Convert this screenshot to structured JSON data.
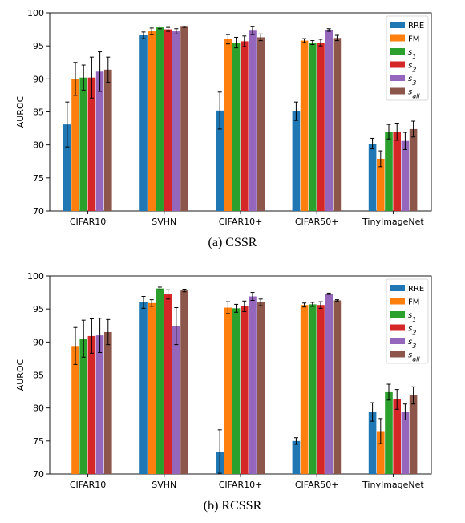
{
  "chart_data": [
    {
      "type": "bar",
      "caption": "(a)  CSSR",
      "ylabel": "AUROC",
      "ylim": [
        70,
        100
      ],
      "yticks": [
        70,
        75,
        80,
        85,
        90,
        95,
        100
      ],
      "categories": [
        "CIFAR10",
        "SVHN",
        "CIFAR10+",
        "CIFAR50+",
        "TinyImageNet"
      ],
      "legend_position": "top-right",
      "series": [
        {
          "name": "RRE",
          "color": "#1f77b4",
          "values": [
            83.1,
            96.6,
            85.2,
            85.1,
            80.2
          ],
          "errors": [
            3.4,
            0.5,
            2.8,
            1.4,
            0.8
          ]
        },
        {
          "name": "FM",
          "color": "#ff7f0e",
          "values": [
            90.0,
            97.2,
            96.0,
            95.8,
            77.9
          ],
          "errors": [
            2.5,
            0.5,
            0.7,
            0.3,
            1.2
          ]
        },
        {
          "name": "s1",
          "color": "#2ca02c",
          "values": [
            90.2,
            97.8,
            95.5,
            95.5,
            82.0
          ],
          "errors": [
            1.9,
            0.2,
            0.8,
            0.3,
            1.1
          ]
        },
        {
          "name": "s2",
          "color": "#d62728",
          "values": [
            90.2,
            97.5,
            95.7,
            95.5,
            82.0
          ],
          "errors": [
            3.1,
            0.3,
            0.8,
            0.5,
            1.3
          ]
        },
        {
          "name": "s3",
          "color": "#9467bd",
          "values": [
            91.1,
            97.2,
            97.3,
            97.4,
            80.6
          ],
          "errors": [
            3.0,
            0.4,
            0.6,
            0.2,
            1.3
          ]
        },
        {
          "name": "s_all",
          "color": "#8c564b",
          "values": [
            91.4,
            97.9,
            96.3,
            96.2,
            82.4
          ],
          "errors": [
            1.9,
            0.1,
            0.5,
            0.4,
            1.2
          ]
        }
      ]
    },
    {
      "type": "bar",
      "caption": "(b)  RCSSR",
      "ylabel": "AUROC",
      "ylim": [
        70,
        100
      ],
      "yticks": [
        70,
        75,
        80,
        85,
        90,
        95,
        100
      ],
      "categories": [
        "CIFAR10",
        "SVHN",
        "CIFAR10+",
        "CIFAR50+",
        "TinyImageNet"
      ],
      "legend_position": "top-right",
      "series": [
        {
          "name": "RRE",
          "color": "#1f77b4",
          "values": [
            null,
            96.0,
            73.4,
            75.0,
            79.4
          ],
          "errors": [
            0,
            0.9,
            3.3,
            0.5,
            1.4
          ]
        },
        {
          "name": "FM",
          "color": "#ff7f0e",
          "values": [
            89.4,
            95.9,
            95.2,
            95.6,
            76.5
          ],
          "errors": [
            2.8,
            0.5,
            0.9,
            0.3,
            1.9
          ]
        },
        {
          "name": "s1",
          "color": "#2ca02c",
          "values": [
            90.5,
            98.1,
            95.1,
            95.7,
            82.4
          ],
          "errors": [
            2.8,
            0.2,
            0.6,
            0.3,
            1.2
          ]
        },
        {
          "name": "s2",
          "color": "#d62728",
          "values": [
            90.9,
            97.2,
            95.4,
            95.6,
            81.3
          ],
          "errors": [
            2.6,
            0.7,
            0.8,
            0.5,
            1.5
          ]
        },
        {
          "name": "s3",
          "color": "#9467bd",
          "values": [
            91.0,
            92.4,
            96.9,
            97.3,
            79.4
          ],
          "errors": [
            2.6,
            2.8,
            0.6,
            0.1,
            1.2
          ]
        },
        {
          "name": "s_all",
          "color": "#8c564b",
          "values": [
            91.5,
            97.8,
            96.0,
            96.3,
            81.9
          ],
          "errors": [
            1.9,
            0.2,
            0.5,
            0.1,
            1.3
          ]
        }
      ]
    }
  ]
}
